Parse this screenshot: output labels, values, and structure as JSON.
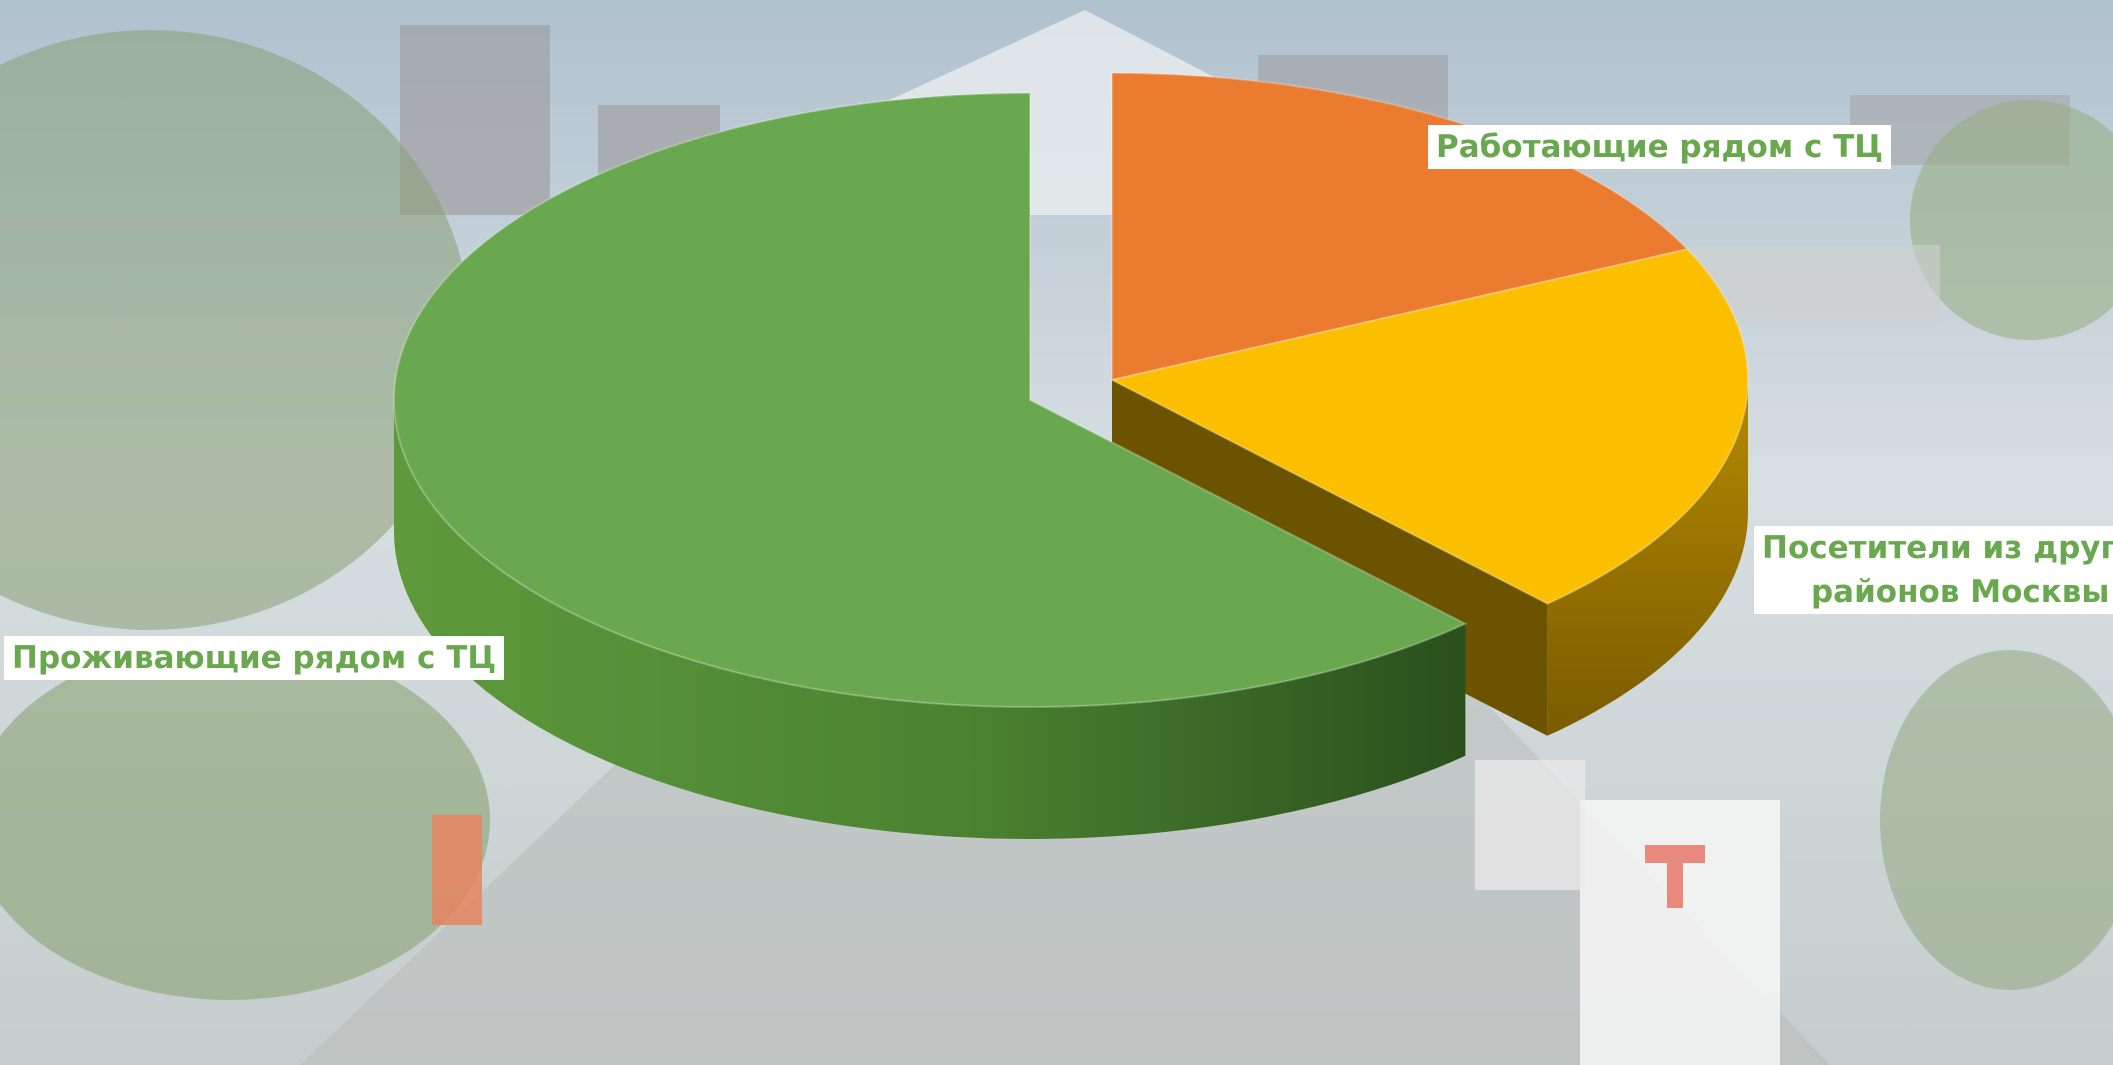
{
  "chart_data": {
    "type": "pie",
    "title": "",
    "series": [
      {
        "name": "Проживающие рядом с ТЦ",
        "value": 62,
        "color": "#6aa84f"
      },
      {
        "name": "Работающие рядом с ТЦ",
        "value": 18,
        "color": "#ea7b2f"
      },
      {
        "name": "Посетители из других районов Москвы",
        "value": 20,
        "color": "#fbbf00"
      }
    ],
    "exploded_slices": [
      1,
      2
    ],
    "view": "3d-perspective",
    "labels": [
      {
        "line1": "Проживающие рядом с ТЦ",
        "line2": ""
      },
      {
        "line1": "Работающие рядом с ТЦ",
        "line2": ""
      },
      {
        "line1": "Посетители из других",
        "line2": "районов Москвы"
      }
    ]
  }
}
